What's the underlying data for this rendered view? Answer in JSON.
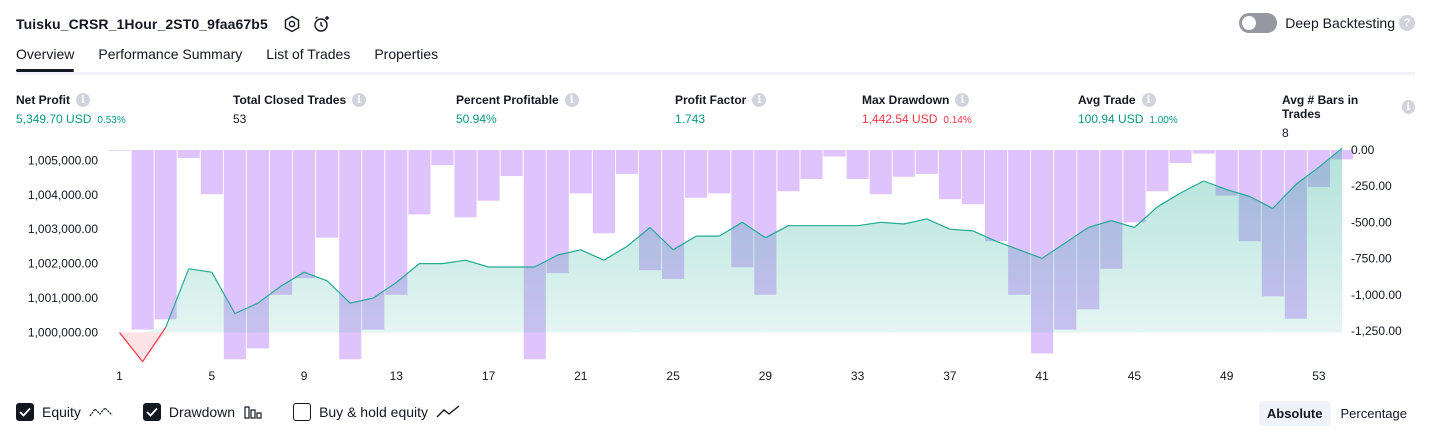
{
  "header": {
    "title": "Tuisku_CRSR_1Hour_2ST0_9faa67b5",
    "settings_icon": "settings-hex-icon",
    "bind_alert_icon": "alert-clock-icon",
    "deep_backtesting_label": "Deep Backtesting",
    "deep_backtesting_on": false,
    "help_glyph": "?"
  },
  "tabs": [
    {
      "label": "Overview",
      "active": true
    },
    {
      "label": "Performance Summary",
      "active": false
    },
    {
      "label": "List of Trades",
      "active": false
    },
    {
      "label": "Properties",
      "active": false
    }
  ],
  "metrics": [
    {
      "label": "Net Profit",
      "value": "5,349.70 USD",
      "pct": "0.53%",
      "tone": "green"
    },
    {
      "label": "Total Closed Trades",
      "value": "53",
      "pct": "",
      "tone": "plain"
    },
    {
      "label": "Percent Profitable",
      "value": "50.94%",
      "pct": "",
      "tone": "green"
    },
    {
      "label": "Profit Factor",
      "value": "1.743",
      "pct": "",
      "tone": "green"
    },
    {
      "label": "Max Drawdown",
      "value": "1,442.54 USD",
      "pct": "0.14%",
      "tone": "red"
    },
    {
      "label": "Avg Trade",
      "value": "100.94 USD",
      "pct": "1.00%",
      "tone": "green"
    },
    {
      "label": "Avg # Bars in Trades",
      "value": "8",
      "pct": "",
      "tone": "plain"
    }
  ],
  "info_glyph": "i",
  "colors": {
    "equity_line": "#22ab94",
    "equity_fill": "#d5efe8",
    "equity_negative_fill": "#fde0e2",
    "equity_negative_line": "#f23645",
    "drawdown_bar": "#d9b8fc",
    "text": "#131722",
    "axis_text": "#131722"
  },
  "chart_data": {
    "type": "area",
    "left_axis": {
      "label": "",
      "ticks": [
        "1,005,000.00",
        "1,004,000.00",
        "1,003,000.00",
        "1,002,000.00",
        "1,001,000.00",
        "1,000,000.00"
      ],
      "ylim": [
        999200,
        1005300
      ],
      "tick_values": [
        1005000,
        1004000,
        1003000,
        1002000,
        1001000,
        1000000
      ]
    },
    "right_axis": {
      "label": "",
      "ticks": [
        "0.00",
        "-250.00",
        "-500.00",
        "-750.00",
        "-1,000.00",
        "-1,250.00"
      ],
      "ylim": [
        -1450,
        0
      ],
      "tick_values": [
        0,
        -250,
        -500,
        -750,
        -1000,
        -1250
      ]
    },
    "x_ticks": [
      "1",
      "5",
      "9",
      "13",
      "17",
      "21",
      "25",
      "29",
      "33",
      "37",
      "41",
      "45",
      "49",
      "53"
    ],
    "x_tick_values": [
      1,
      5,
      9,
      13,
      17,
      21,
      25,
      29,
      33,
      37,
      41,
      45,
      49,
      53
    ],
    "x_range": [
      0.5,
      54
    ],
    "series": [
      {
        "name": "Equity",
        "kind": "line",
        "x": [
          1,
          2,
          3,
          4,
          5,
          6,
          7,
          8,
          9,
          10,
          11,
          12,
          13,
          14,
          15,
          16,
          17,
          18,
          19,
          20,
          21,
          22,
          23,
          24,
          25,
          26,
          27,
          28,
          29,
          30,
          31,
          32,
          33,
          34,
          35,
          36,
          37,
          38,
          39,
          40,
          41,
          42,
          43,
          44,
          45,
          46,
          47,
          48,
          49,
          50,
          51,
          52,
          53,
          54
        ],
        "values": [
          1000000,
          999150,
          1000150,
          1001850,
          1001750,
          1000550,
          1000850,
          1001350,
          1001750,
          1001500,
          1000850,
          1001000,
          1001450,
          1002000,
          1002000,
          1002100,
          1001900,
          1001900,
          1001900,
          1002250,
          1002400,
          1002100,
          1002500,
          1003050,
          1002400,
          1002800,
          1002800,
          1003200,
          1002750,
          1003100,
          1003100,
          1003100,
          1003100,
          1003200,
          1003150,
          1003300,
          1003000,
          1002950,
          1002650,
          1002400,
          1002150,
          1002600,
          1003050,
          1003250,
          1003050,
          1003650,
          1004050,
          1004400,
          1004150,
          1003950,
          1003600,
          1004300,
          1004800,
          1005350
        ]
      },
      {
        "name": "Drawdown",
        "kind": "bar",
        "x": [
          1,
          2,
          3,
          4,
          5,
          6,
          7,
          8,
          9,
          10,
          11,
          12,
          13,
          14,
          15,
          16,
          17,
          18,
          19,
          20,
          21,
          22,
          23,
          24,
          25,
          26,
          27,
          28,
          29,
          30,
          31,
          32,
          33,
          34,
          35,
          36,
          37,
          38,
          39,
          40,
          41,
          42,
          43,
          44,
          45,
          46,
          47,
          48,
          49,
          50,
          51,
          52,
          53,
          54
        ],
        "values": [
          -5,
          -1240,
          -1170,
          -55,
          -305,
          -1445,
          -1370,
          -1000,
          -885,
          -605,
          -1445,
          -1240,
          -1000,
          -445,
          -105,
          -465,
          -350,
          -180,
          -1445,
          -850,
          -300,
          -575,
          -165,
          -830,
          -890,
          -330,
          -300,
          -810,
          -1000,
          -285,
          -200,
          -45,
          -200,
          -305,
          -185,
          -165,
          -340,
          -375,
          -630,
          -1000,
          -1405,
          -1240,
          -1100,
          -820,
          -500,
          -285,
          -90,
          -25,
          -315,
          -630,
          -1010,
          -1165,
          -255,
          -65
        ]
      }
    ]
  },
  "legend": [
    {
      "label": "Equity",
      "checked": true,
      "glyph": "equity-wave-icon"
    },
    {
      "label": "Drawdown",
      "checked": true,
      "glyph": "drawdown-bars-icon"
    },
    {
      "label": "Buy & hold equity",
      "checked": false,
      "glyph": "buy-hold-line-icon"
    }
  ],
  "modes": [
    {
      "label": "Absolute",
      "active": true
    },
    {
      "label": "Percentage",
      "active": false
    }
  ]
}
